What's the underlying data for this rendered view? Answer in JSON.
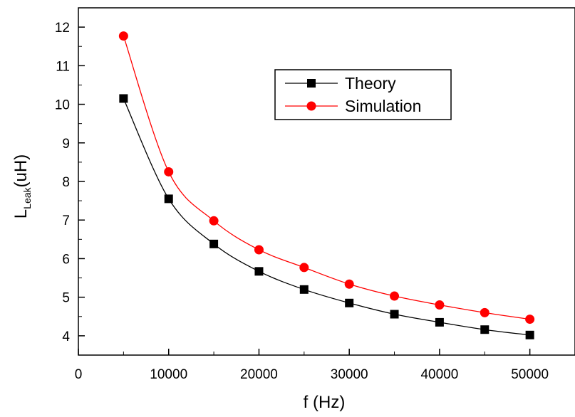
{
  "chart_data": {
    "type": "line",
    "xlabel": "f (Hz)",
    "ylabel": {
      "main": "L",
      "subscript": "Leak",
      "suffix": "(uH)"
    },
    "xlim": [
      0,
      55000
    ],
    "ylim": [
      3.5,
      12.5
    ],
    "xticks": [
      0,
      10000,
      20000,
      30000,
      40000,
      50000
    ],
    "xtick_labels": [
      "0",
      "10000",
      "20000",
      "30000",
      "40000",
      "50000"
    ],
    "yticks": [
      4,
      5,
      6,
      7,
      8,
      9,
      10,
      11,
      12
    ],
    "ytick_labels": [
      "4",
      "5",
      "6",
      "7",
      "8",
      "9",
      "10",
      "11",
      "12"
    ],
    "grid": false,
    "legend_position": "top-right",
    "x": [
      5000,
      10000,
      15000,
      20000,
      25000,
      30000,
      35000,
      40000,
      45000,
      50000
    ],
    "series": [
      {
        "name": "Theory",
        "color": "#000000",
        "marker": "square",
        "values": [
          10.15,
          7.55,
          6.38,
          5.67,
          5.2,
          4.85,
          4.56,
          4.35,
          4.16,
          4.02
        ]
      },
      {
        "name": "Simulation",
        "color": "#ff0000",
        "marker": "circle",
        "values": [
          11.77,
          8.25,
          6.98,
          6.23,
          5.77,
          5.34,
          5.03,
          4.8,
          4.6,
          4.43
        ]
      }
    ]
  }
}
